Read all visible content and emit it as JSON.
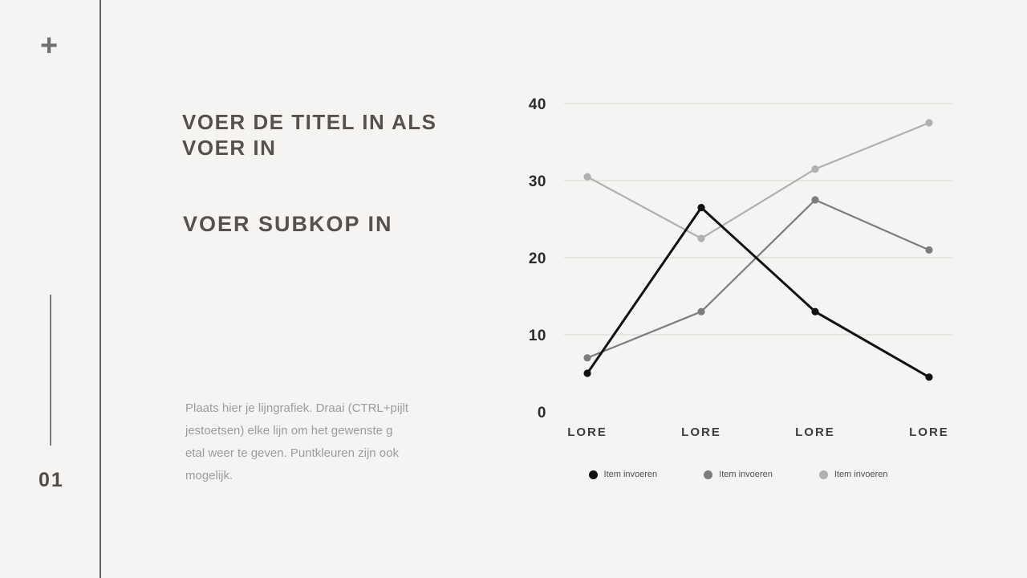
{
  "sidebar": {
    "plus_icon": "+",
    "page_number": "01"
  },
  "content": {
    "title": "VOER DE TITEL IN ALS\nVOER IN",
    "subtitle": "VOER SUBKOP IN",
    "body": "Plaats hier je lijngrafiek. Draai (CTRL+pijlt\njestoetsen) elke lijn om het gewenste g\netal weer te geven. Puntkleuren zijn ook\nmogelijk."
  },
  "chart_data": {
    "type": "line",
    "title": "",
    "xlabel": "",
    "ylabel": "",
    "categories": [
      "LORE",
      "LORE",
      "LORE",
      "LORE"
    ],
    "series": [
      {
        "name": "Item invoeren",
        "color": "#121212",
        "values": [
          5,
          26.5,
          13,
          4.5
        ]
      },
      {
        "name": "Item invoeren",
        "color": "#7d7d7d",
        "values": [
          7,
          13,
          27.5,
          21
        ]
      },
      {
        "name": "Item invoeren",
        "color": "#b1b0ae",
        "values": [
          30.5,
          22.5,
          31.5,
          37.5
        ]
      }
    ],
    "y_ticks": [
      0,
      10,
      20,
      30,
      40
    ],
    "ylim": [
      0,
      40
    ],
    "grid": true,
    "legend_position": "bottom"
  }
}
